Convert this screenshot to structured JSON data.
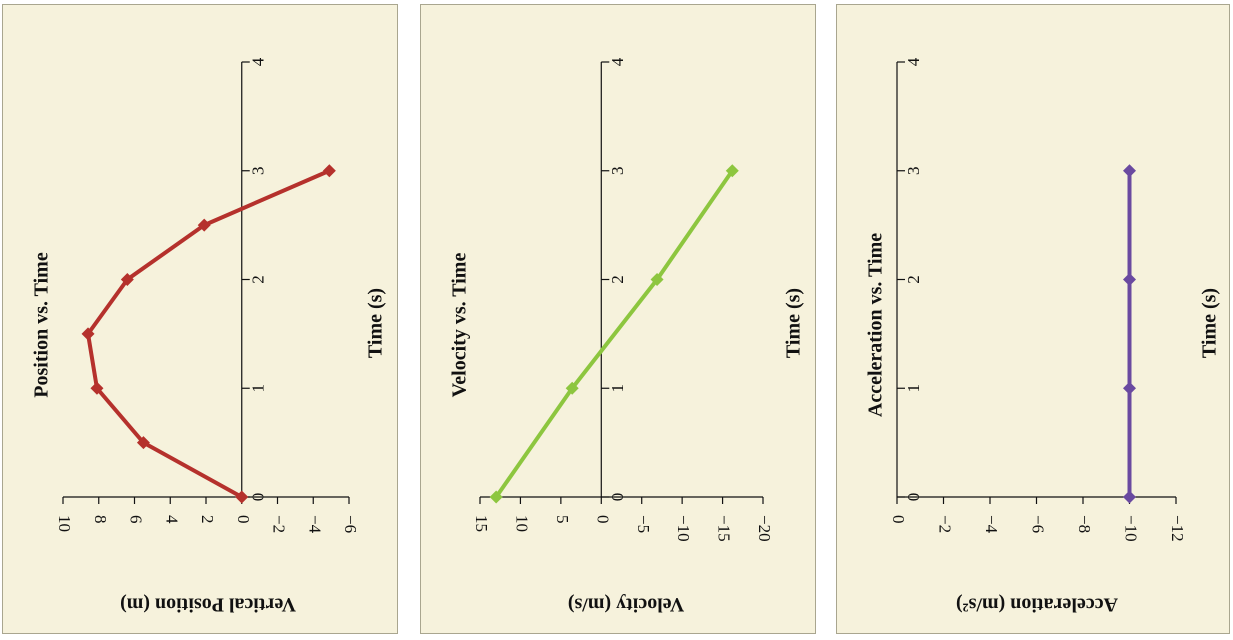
{
  "chart_data": [
    {
      "type": "line",
      "title": "Position vs. Time",
      "xlabel": "Time (s)",
      "ylabel": "Vertical Position (m)",
      "xlim": [
        0,
        4
      ],
      "ylim": [
        -6,
        10
      ],
      "xticks": [
        "0",
        "1",
        "2",
        "3",
        "4"
      ],
      "yticks": [
        "10",
        "8",
        "6",
        "4",
        "2",
        "0",
        "−2",
        "−4",
        "−6"
      ],
      "ytick_values": [
        10,
        8,
        6,
        4,
        2,
        0,
        -2,
        -4,
        -6
      ],
      "color": "#b5312c",
      "x": [
        0,
        0.5,
        1.0,
        1.5,
        2.0,
        2.5,
        3.0
      ],
      "y": [
        0,
        5.5,
        8.1,
        8.6,
        6.4,
        2.1,
        -4.9
      ]
    },
    {
      "type": "line",
      "title": "Velocity vs. Time",
      "xlabel": "Time (s)",
      "ylabel": "Velocity (m/s)",
      "xlim": [
        0,
        4
      ],
      "ylim": [
        -20,
        15
      ],
      "xticks": [
        "0",
        "1",
        "2",
        "3",
        "4"
      ],
      "yticks": [
        "15",
        "10",
        "5",
        "0",
        "−5",
        "−10",
        "−15",
        "−20"
      ],
      "ytick_values": [
        15,
        10,
        5,
        0,
        -5,
        -10,
        -15,
        -20
      ],
      "color": "#8dc63f",
      "x": [
        0,
        1,
        2,
        3
      ],
      "y": [
        13.0,
        3.6,
        -6.9,
        -16.2
      ]
    },
    {
      "type": "line",
      "title": "Acceleration vs. Time",
      "xlabel": "Time (s)",
      "ylabel": "Acceleration (m/s²)",
      "xlim": [
        0,
        4
      ],
      "ylim": [
        -12,
        0
      ],
      "xticks": [
        "0",
        "1",
        "2",
        "3",
        "4"
      ],
      "yticks": [
        "0",
        "−2",
        "−4",
        "−6",
        "−8",
        "−10",
        "−12"
      ],
      "ytick_values": [
        0,
        -2,
        -4,
        -6,
        -8,
        -10,
        -12
      ],
      "color": "#6a4aa0",
      "x": [
        0,
        1,
        2,
        3
      ],
      "y": [
        -10,
        -10,
        -10,
        -10
      ]
    }
  ]
}
